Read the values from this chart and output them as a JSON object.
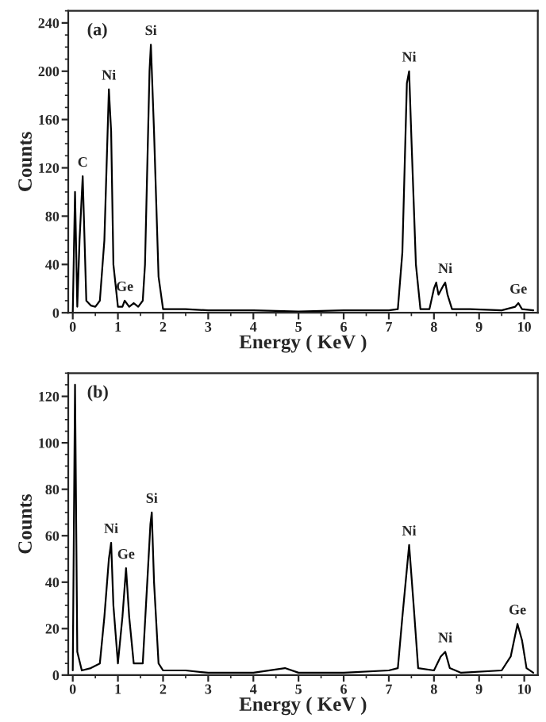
{
  "chart_data": [
    {
      "type": "line",
      "xlabel": "Energy ( KeV )",
      "ylabel": "Counts",
      "xlim": [
        -0.1,
        10.3
      ],
      "ylim": [
        0,
        250
      ],
      "xticks": [
        0,
        1,
        2,
        3,
        4,
        5,
        6,
        7,
        8,
        9,
        10
      ],
      "yticks": [
        0,
        40,
        80,
        120,
        160,
        200,
        240
      ],
      "grid": false,
      "legend": false,
      "marker": "none",
      "line_style": "solid",
      "annotations": [
        "(a)",
        {
          "text": "C",
          "x": 0.22,
          "y": 113
        },
        {
          "text": "Ni",
          "x": 0.8,
          "y": 185
        },
        {
          "text": "Ge",
          "x": 1.15,
          "y": 10
        },
        {
          "text": "Si",
          "x": 1.73,
          "y": 222
        },
        {
          "text": "Ni",
          "x": 7.45,
          "y": 200
        },
        {
          "text": "Ni",
          "x": 8.25,
          "y": 25
        },
        {
          "text": "Ge",
          "x": 9.87,
          "y": 8
        }
      ],
      "series": [
        {
          "color": "#000000",
          "x": [
            0,
            0.05,
            0.1,
            0.15,
            0.22,
            0.3,
            0.4,
            0.5,
            0.6,
            0.7,
            0.8,
            0.85,
            0.9,
            1.0,
            1.1,
            1.15,
            1.25,
            1.35,
            1.45,
            1.55,
            1.6,
            1.7,
            1.73,
            1.8,
            1.9,
            2.0,
            2.5,
            3,
            3.5,
            4,
            5,
            6,
            7,
            7.2,
            7.3,
            7.4,
            7.45,
            7.5,
            7.6,
            7.7,
            7.9,
            8.0,
            8.05,
            8.1,
            8.2,
            8.25,
            8.3,
            8.4,
            8.8,
            9.5,
            9.8,
            9.87,
            9.95,
            10.2
          ],
          "values": [
            0,
            100,
            5,
            60,
            113,
            10,
            6,
            5,
            10,
            60,
            185,
            150,
            40,
            5,
            5,
            10,
            5,
            8,
            5,
            10,
            40,
            200,
            222,
            150,
            30,
            3,
            3,
            2,
            2,
            2,
            1,
            2,
            2,
            3,
            50,
            190,
            200,
            145,
            40,
            3,
            3,
            20,
            25,
            15,
            22,
            25,
            15,
            3,
            3,
            2,
            5,
            8,
            3,
            2
          ]
        }
      ]
    },
    {
      "type": "line",
      "xlabel": "Energy ( KeV )",
      "ylabel": "Counts",
      "xlim": [
        -0.1,
        10.3
      ],
      "ylim": [
        0,
        130
      ],
      "xticks": [
        0,
        1,
        2,
        3,
        4,
        5,
        6,
        7,
        8,
        9,
        10
      ],
      "yticks": [
        0,
        20,
        40,
        60,
        80,
        100,
        120
      ],
      "grid": false,
      "legend": false,
      "marker": "none",
      "line_style": "solid",
      "annotations": [
        "(b)",
        {
          "text": "Ni",
          "x": 0.85,
          "y": 57
        },
        {
          "text": "Ge",
          "x": 1.18,
          "y": 46
        },
        {
          "text": "Si",
          "x": 1.75,
          "y": 70
        },
        {
          "text": "Ni",
          "x": 7.45,
          "y": 56
        },
        {
          "text": "Ni",
          "x": 8.25,
          "y": 10
        },
        {
          "text": "Ge",
          "x": 9.85,
          "y": 22
        }
      ],
      "series": [
        {
          "color": "#000000",
          "x": [
            0,
            0.05,
            0.1,
            0.2,
            0.4,
            0.6,
            0.7,
            0.8,
            0.85,
            0.9,
            1.0,
            1.1,
            1.18,
            1.25,
            1.35,
            1.45,
            1.55,
            1.65,
            1.72,
            1.75,
            1.8,
            1.9,
            2.0,
            2.5,
            3,
            4,
            4.7,
            5,
            6,
            7,
            7.2,
            7.3,
            7.45,
            7.55,
            7.65,
            8.0,
            8.15,
            8.25,
            8.35,
            8.6,
            9.5,
            9.7,
            9.85,
            9.95,
            10.05,
            10.2
          ],
          "values": [
            2,
            125,
            10,
            2,
            3,
            5,
            25,
            50,
            57,
            30,
            5,
            25,
            46,
            25,
            5,
            5,
            5,
            40,
            65,
            70,
            40,
            5,
            2,
            2,
            1,
            1,
            3,
            1,
            1,
            2,
            3,
            25,
            56,
            30,
            3,
            2,
            8,
            10,
            3,
            1,
            2,
            8,
            22,
            15,
            3,
            1
          ]
        }
      ]
    }
  ]
}
